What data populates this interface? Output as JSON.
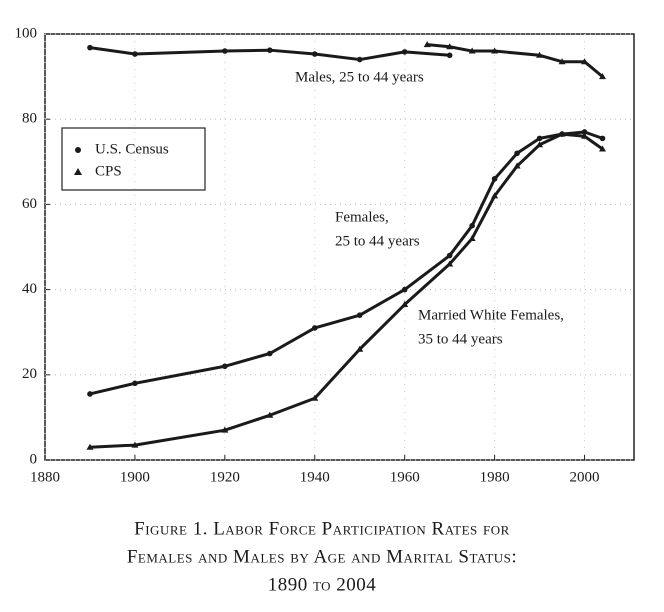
{
  "chart_data": {
    "type": "line",
    "title": [
      "Figure 1. Labor Force Participation Rates for",
      "Females and Males by Age and Marital Status:",
      "1890 to 2004"
    ],
    "xlim": [
      1880,
      2011
    ],
    "ylim": [
      0,
      100
    ],
    "xticks": [
      1880,
      1900,
      1920,
      1940,
      1960,
      1980,
      2000
    ],
    "yticks": [
      0,
      20,
      40,
      60,
      80,
      100
    ],
    "grid": true,
    "legend_position": "upper left",
    "legend": [
      {
        "label": "U.S. Census",
        "marker": "circle"
      },
      {
        "label": "CPS",
        "marker": "triangle"
      }
    ],
    "series": [
      {
        "label": [
          "Males, 25 to 44 years"
        ],
        "marker": "circle",
        "color": "#1a1a1a",
        "x": [
          1890,
          1900,
          1920,
          1930,
          1940,
          1950,
          1960,
          1970
        ],
        "values": [
          96.8,
          95.3,
          96,
          96.2,
          95.3,
          94,
          95.8,
          95
        ]
      },
      {
        "marker": "triangle",
        "color": "#1a1a1a",
        "x": [
          1965,
          1970,
          1975,
          1980,
          1990,
          1995,
          2000,
          2004
        ],
        "values": [
          97.5,
          97,
          96,
          96,
          95,
          93.5,
          93.5,
          90
        ]
      },
      {
        "label": [
          "Females,",
          "25 to 44 years"
        ],
        "marker": "circle",
        "color": "#1a1a1a",
        "x": [
          1890,
          1900,
          1920,
          1930,
          1940,
          1950,
          1960,
          1970,
          1975,
          1980,
          1985,
          1990,
          1995,
          2000,
          2004
        ],
        "values": [
          15.5,
          18,
          22,
          25,
          31,
          34,
          40,
          48,
          55,
          66,
          72,
          75.5,
          76.5,
          77,
          75.5
        ]
      },
      {
        "label": [
          "Married White Females,",
          "35 to 44 years"
        ],
        "marker": "triangle",
        "color": "#1a1a1a",
        "x": [
          1890,
          1900,
          1920,
          1930,
          1940,
          1950,
          1960,
          1970,
          1975,
          1980,
          1985,
          1990,
          1995,
          2000,
          2004
        ],
        "values": [
          3,
          3.5,
          7,
          10.5,
          14.5,
          26,
          36.5,
          46,
          52,
          62,
          69,
          74,
          76.5,
          76,
          73
        ]
      }
    ]
  }
}
